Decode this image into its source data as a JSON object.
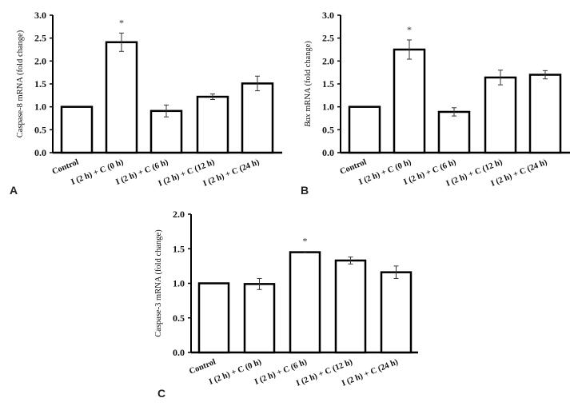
{
  "chart_data": [
    {
      "type": "bar",
      "panel": "A",
      "ylabel": "Caspase-8 mRNA  (fold change)",
      "ylim": [
        0,
        3.0
      ],
      "yticks": [
        "0.0",
        "0.5",
        "1.0",
        "1.5",
        "2.0",
        "2.5",
        "3.0"
      ],
      "categories": [
        "Control",
        "I (2 h) + C (0 h)",
        "I (2 h) + C (6 h)",
        "I (2 h) + C (12 h)",
        "I (2 h) + C (24 h)"
      ],
      "values": [
        1.0,
        2.41,
        0.91,
        1.22,
        1.51
      ],
      "errors": [
        0,
        0.2,
        0.13,
        0.06,
        0.16
      ],
      "significance": [
        "",
        "*",
        "",
        "",
        ""
      ]
    },
    {
      "type": "bar",
      "panel": "B",
      "ylabel": "Bax mRNA (fold change)",
      "ylabel_italic": "Bax",
      "ylabel_rest": " mRNA (fold change)",
      "ylim": [
        0,
        3.0
      ],
      "yticks": [
        "0.0",
        "0.5",
        "1.0",
        "1.5",
        "2.0",
        "2.5",
        "3.0"
      ],
      "categories": [
        "Control",
        "I (2 h) + C (0 h)",
        "I (2 h) + C (6 h)",
        "I (2 h) + C (12 h)",
        "I (2 h) + C (24 h)"
      ],
      "values": [
        1.0,
        2.25,
        0.89,
        1.64,
        1.7
      ],
      "errors": [
        0,
        0.21,
        0.09,
        0.16,
        0.09
      ],
      "significance": [
        "",
        "*",
        "",
        "",
        ""
      ]
    },
    {
      "type": "bar",
      "panel": "C",
      "ylabel": "Caspase-3 mRNA  (fold change)",
      "ylim": [
        0,
        2.0
      ],
      "yticks": [
        "0.0",
        "0.5",
        "1.0",
        "1.5",
        "2.0"
      ],
      "categories": [
        "Control",
        "I (2 h) + C (0 h)",
        "I (2 h) + C (6 h)",
        "I (2 h) + C (12 h)",
        "I (2 h) + C (24 h)"
      ],
      "values": [
        1.0,
        0.99,
        1.45,
        1.33,
        1.16
      ],
      "errors": [
        0,
        0.08,
        0.01,
        0.05,
        0.09
      ],
      "significance": [
        "",
        "",
        "*",
        "",
        ""
      ]
    }
  ]
}
